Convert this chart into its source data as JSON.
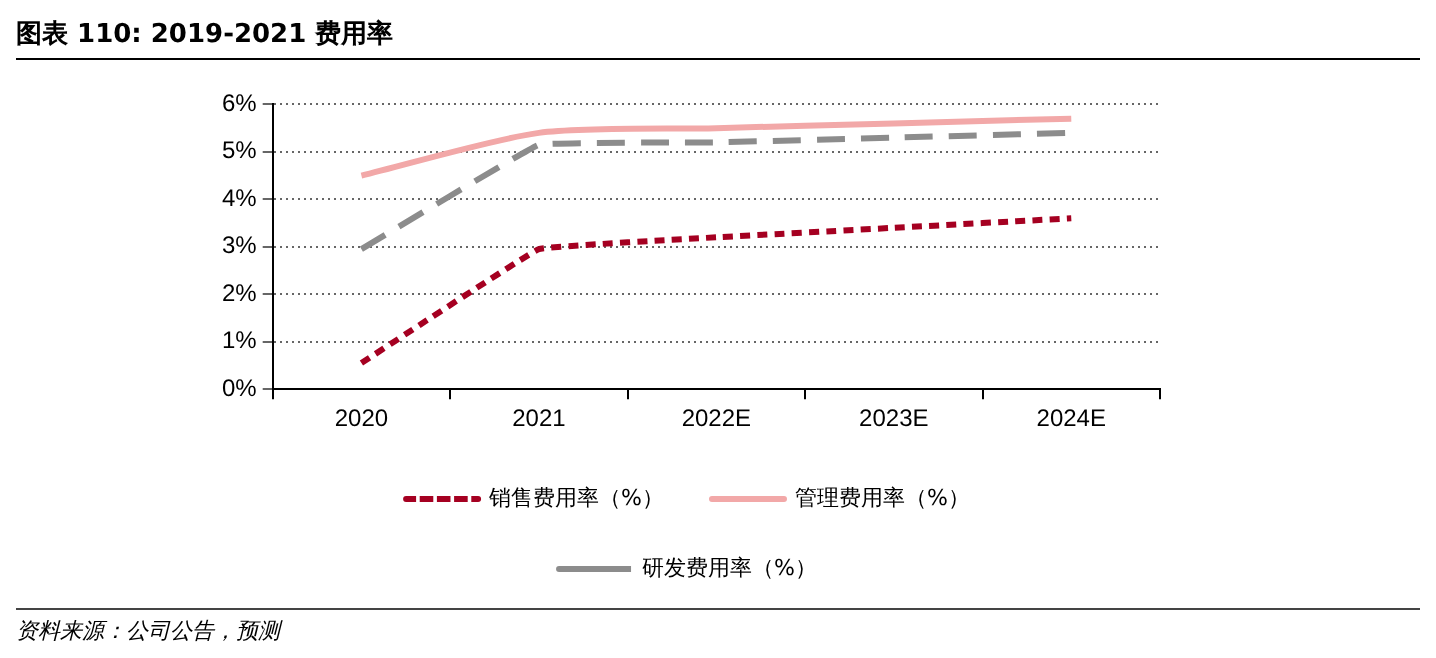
{
  "chart_data": {
    "type": "line",
    "title": "图表 110: 2019-2021 费用率",
    "categories": [
      "2020",
      "2021",
      "2022E",
      "2023E",
      "2024E"
    ],
    "series": [
      {
        "name": "销售费用率（%）",
        "color": "#a50021",
        "line_style": "dashed",
        "values": [
          0.55,
          2.95,
          3.2,
          3.4,
          3.6
        ]
      },
      {
        "name": "管理费用率（%）",
        "color": "#f2a8a8",
        "line_style": "solid",
        "values": [
          4.5,
          5.4,
          5.5,
          5.6,
          5.7
        ]
      },
      {
        "name": "研发费用率（%）",
        "color": "#8c8c8c",
        "line_style": "dashed",
        "values": [
          2.95,
          5.15,
          5.2,
          5.3,
          5.4
        ]
      }
    ],
    "ylim": [
      0,
      6
    ],
    "yticks": [
      {
        "value": 0,
        "label": "0%"
      },
      {
        "value": 1,
        "label": "1%"
      },
      {
        "value": 2,
        "label": "2%"
      },
      {
        "value": 3,
        "label": "3%"
      },
      {
        "value": 4,
        "label": "4%"
      },
      {
        "value": 5,
        "label": "5%"
      },
      {
        "value": 6,
        "label": "6%"
      }
    ],
    "grid": "y",
    "legend": "bottom",
    "marker": "none",
    "annotations": [
      "资料来源：公司公告，预测"
    ]
  }
}
